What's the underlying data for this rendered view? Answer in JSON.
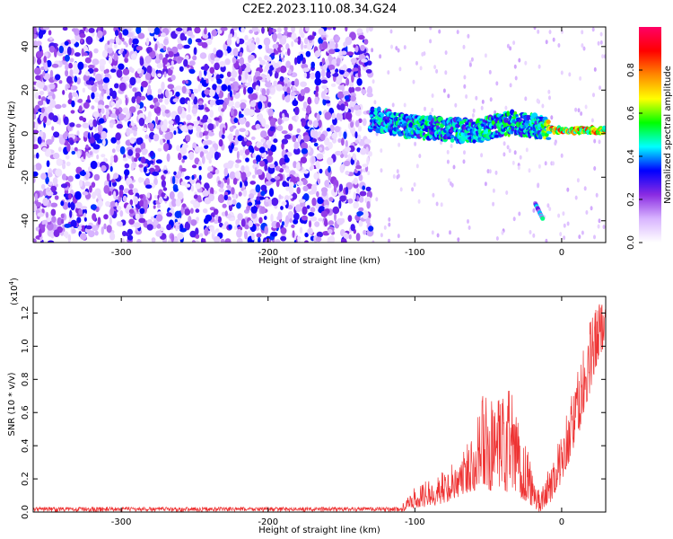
{
  "chart_data": [
    {
      "type": "heatmap",
      "title": "C2E2.2023.110.08.34.G24",
      "xlabel": "Height of straight line (km)",
      "ylabel": "Frequency (Hz)",
      "xlim": [
        -360,
        30
      ],
      "ylim": [
        -50,
        49
      ],
      "xticks": [
        "-300",
        "-200",
        "-100",
        "0"
      ],
      "yticks": [
        "-40",
        "-20",
        "0",
        "20",
        "40"
      ],
      "colorbar": {
        "label": "Normalized spectral amplitude",
        "range": [
          0.0,
          1.0
        ],
        "ticks": [
          "0.0",
          "0.2",
          "0.4",
          "0.6",
          "0.8"
        ],
        "colors": [
          "#ffffff",
          "#d8b4ff",
          "#8a2be2",
          "#0000ff",
          "#00ffff",
          "#00ff00",
          "#ffff00",
          "#ff8800",
          "#ff0000",
          "#ff0066"
        ]
      },
      "features": {
        "noise_region": {
          "x": [
            -360,
            -130
          ],
          "y": [
            -50,
            49
          ],
          "amplitude": "0.1-0.3"
        },
        "signal_band": [
          {
            "x": -130,
            "freq": 7,
            "amplitude": 0.45
          },
          {
            "x": -100,
            "freq": 3,
            "amplitude": 0.5
          },
          {
            "x": -60,
            "freq": 1,
            "amplitude": 0.5
          },
          {
            "x": -35,
            "freq": 5,
            "amplitude": 0.55
          },
          {
            "x": -15,
            "freq": 3,
            "amplitude": 0.5
          },
          {
            "x": -5,
            "freq": 1.5,
            "amplitude": 0.85
          },
          {
            "x": 30,
            "freq": 1.5,
            "amplitude": 0.85
          }
        ],
        "diagonal_trace": [
          {
            "x": -18,
            "freq": -32
          },
          {
            "x": -13,
            "freq": -39
          }
        ]
      }
    },
    {
      "type": "line",
      "xlabel": "Height of straight line (km)",
      "ylabel": "SNR (10 * v/v)",
      "multiplier": "(x10",
      "multiplier_exp": "4",
      "multiplier_close": ")",
      "xlim": [
        -360,
        30
      ],
      "ylim": [
        0,
        1.3
      ],
      "xticks": [
        "-300",
        "-200",
        "-100",
        "0"
      ],
      "yticks": [
        "0.0",
        "0.2",
        "0.4",
        "0.6",
        "0.8",
        "1.0",
        "1.2"
      ],
      "color": "#ee3333",
      "envelope": [
        {
          "x": -360,
          "lo": 0.0,
          "hi": 0.03
        },
        {
          "x": -110,
          "lo": 0.0,
          "hi": 0.03
        },
        {
          "x": -100,
          "lo": 0.02,
          "hi": 0.15
        },
        {
          "x": -80,
          "lo": 0.05,
          "hi": 0.25
        },
        {
          "x": -65,
          "lo": 0.1,
          "hi": 0.4
        },
        {
          "x": -55,
          "lo": 0.15,
          "hi": 0.73
        },
        {
          "x": -45,
          "lo": 0.1,
          "hi": 0.65
        },
        {
          "x": -35,
          "lo": 0.1,
          "hi": 0.78
        },
        {
          "x": -25,
          "lo": 0.05,
          "hi": 0.45
        },
        {
          "x": -15,
          "lo": 0.0,
          "hi": 0.12
        },
        {
          "x": -5,
          "lo": 0.08,
          "hi": 0.35
        },
        {
          "x": 5,
          "lo": 0.3,
          "hi": 0.65
        },
        {
          "x": 15,
          "lo": 0.55,
          "hi": 1.0
        },
        {
          "x": 22,
          "lo": 0.8,
          "hi": 1.25
        },
        {
          "x": 30,
          "lo": 1.05,
          "hi": 1.3
        }
      ]
    }
  ]
}
